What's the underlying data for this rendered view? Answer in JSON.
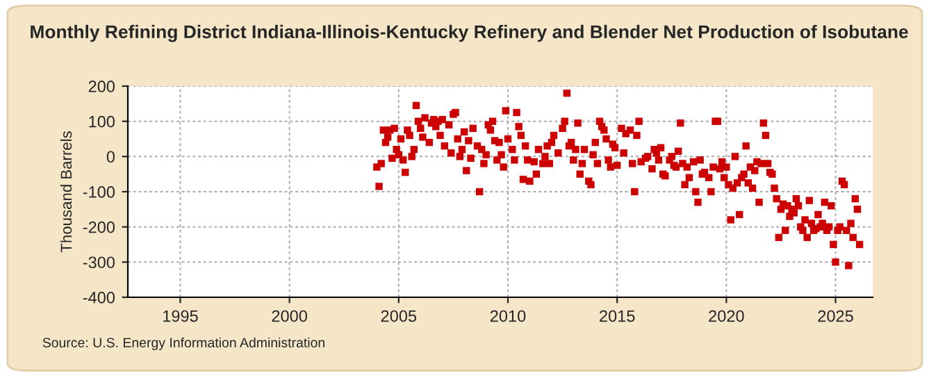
{
  "chart_data": {
    "type": "scatter",
    "title": "Monthly Refining District Indiana-Illinois-Kentucky Refinery and Blender Net Production of Isobutane",
    "ylabel": "Thousand Barrels",
    "annotations": [
      "Source: U.S. Energy Information Administration"
    ],
    "x": [
      2004.0,
      2004.1,
      2004.2,
      2004.3,
      2004.4,
      2004.5,
      2004.6,
      2004.7,
      2004.8,
      2004.9,
      2005.0,
      2005.1,
      2005.2,
      2005.3,
      2005.4,
      2005.5,
      2005.6,
      2005.7,
      2005.8,
      2005.9,
      2006.0,
      2006.1,
      2006.2,
      2006.4,
      2006.5,
      2006.6,
      2006.7,
      2006.8,
      2006.9,
      2007.0,
      2007.1,
      2007.3,
      2007.4,
      2007.5,
      2007.6,
      2007.7,
      2007.8,
      2007.9,
      2008.0,
      2008.1,
      2008.2,
      2008.3,
      2008.4,
      2008.6,
      2008.7,
      2008.8,
      2008.9,
      2009.0,
      2009.1,
      2009.2,
      2009.3,
      2009.4,
      2009.5,
      2009.6,
      2009.7,
      2009.8,
      2009.9,
      2010.0,
      2010.2,
      2010.3,
      2010.4,
      2010.5,
      2010.6,
      2010.7,
      2010.8,
      2010.9,
      2011.0,
      2011.2,
      2011.3,
      2011.4,
      2011.6,
      2011.7,
      2011.8,
      2011.9,
      2012.0,
      2012.1,
      2012.3,
      2012.5,
      2012.6,
      2012.7,
      2012.8,
      2012.9,
      2013.0,
      2013.1,
      2013.2,
      2013.3,
      2013.4,
      2013.5,
      2013.7,
      2013.8,
      2013.9,
      2014.0,
      2014.1,
      2014.2,
      2014.3,
      2014.4,
      2014.5,
      2014.6,
      2014.7,
      2014.8,
      2014.9,
      2015.0,
      2015.2,
      2015.3,
      2015.4,
      2015.6,
      2015.7,
      2015.8,
      2015.9,
      2016.0,
      2016.1,
      2016.3,
      2016.4,
      2016.6,
      2016.7,
      2016.8,
      2016.9,
      2017.0,
      2017.1,
      2017.2,
      2017.4,
      2017.5,
      2017.6,
      2017.7,
      2017.8,
      2017.9,
      2018.0,
      2018.1,
      2018.2,
      2018.3,
      2018.5,
      2018.6,
      2018.7,
      2018.8,
      2018.9,
      2019.0,
      2019.2,
      2019.3,
      2019.4,
      2019.5,
      2019.6,
      2019.7,
      2019.8,
      2019.9,
      2020.0,
      2020.1,
      2020.2,
      2020.3,
      2020.4,
      2020.5,
      2020.6,
      2020.7,
      2020.8,
      2020.9,
      2021.0,
      2021.1,
      2021.2,
      2021.3,
      2021.4,
      2021.5,
      2021.6,
      2021.7,
      2021.8,
      2021.9,
      2022.0,
      2022.1,
      2022.2,
      2022.3,
      2022.4,
      2022.5,
      2022.6,
      2022.7,
      2022.8,
      2022.9,
      2023.0,
      2023.1,
      2023.2,
      2023.3,
      2023.4,
      2023.5,
      2023.6,
      2023.7,
      2023.8,
      2023.9,
      2024.0,
      2024.1,
      2024.2,
      2024.3,
      2024.4,
      2024.5,
      2024.6,
      2024.7,
      2024.8,
      2024.9,
      2025.0,
      2025.1,
      2025.2,
      2025.3,
      2025.4,
      2025.5,
      2025.6,
      2025.7,
      2025.8,
      2025.9,
      2026.0,
      2026.1
    ],
    "values": [
      -30,
      -85,
      -20,
      75,
      40,
      55,
      75,
      -5,
      80,
      20,
      5,
      50,
      -10,
      -45,
      75,
      60,
      0,
      20,
      145,
      100,
      80,
      55,
      110,
      40,
      95,
      105,
      85,
      100,
      60,
      105,
      30,
      90,
      10,
      120,
      125,
      50,
      0,
      20,
      70,
      -40,
      45,
      -5,
      80,
      30,
      -100,
      20,
      -20,
      5,
      90,
      75,
      100,
      45,
      -10,
      40,
      5,
      -30,
      130,
      50,
      20,
      -10,
      125,
      85,
      60,
      -65,
      30,
      -10,
      -70,
      -15,
      -50,
      20,
      -20,
      0,
      30,
      -20,
      40,
      60,
      10,
      80,
      100,
      180,
      30,
      40,
      -10,
      20,
      95,
      -50,
      -20,
      20,
      -70,
      -80,
      5,
      40,
      -20,
      100,
      85,
      75,
      50,
      -10,
      -30,
      35,
      25,
      -25,
      80,
      10,
      65,
      75,
      -20,
      -100,
      60,
      100,
      -15,
      -5,
      0,
      -35,
      20,
      10,
      -10,
      25,
      -50,
      -55,
      -10,
      0,
      -25,
      -30,
      15,
      95,
      -20,
      -80,
      -30,
      -60,
      -15,
      -100,
      -130,
      -10,
      -50,
      -45,
      -60,
      -100,
      -30,
      100,
      100,
      -35,
      -15,
      -60,
      -30,
      -80,
      -180,
      -90,
      0,
      -75,
      -165,
      -60,
      -50,
      30,
      -75,
      -30,
      -90,
      -40,
      -15,
      -130,
      -20,
      95,
      60,
      -20,
      -45,
      -50,
      -90,
      -120,
      -230,
      -150,
      -135,
      -210,
      -140,
      -170,
      -150,
      -160,
      -120,
      -140,
      -200,
      -210,
      -180,
      -230,
      -125,
      -190,
      -210,
      -205,
      -165,
      -200,
      -190,
      -130,
      -210,
      -200,
      -140,
      -250,
      -300,
      -210,
      -200,
      -70,
      -80,
      -210,
      -310,
      -190,
      -230,
      -120,
      -150,
      -250
    ],
    "color": "#cc0000",
    "marker": "square",
    "xlim": [
      1992.6,
      2026.7
    ],
    "xticks": [
      1995,
      2000,
      2005,
      2010,
      2015,
      2020,
      2025
    ],
    "ylim": [
      -400,
      200
    ],
    "yticks": [
      -400,
      -300,
      -200,
      -100,
      0,
      100,
      200
    ],
    "grid": true
  }
}
